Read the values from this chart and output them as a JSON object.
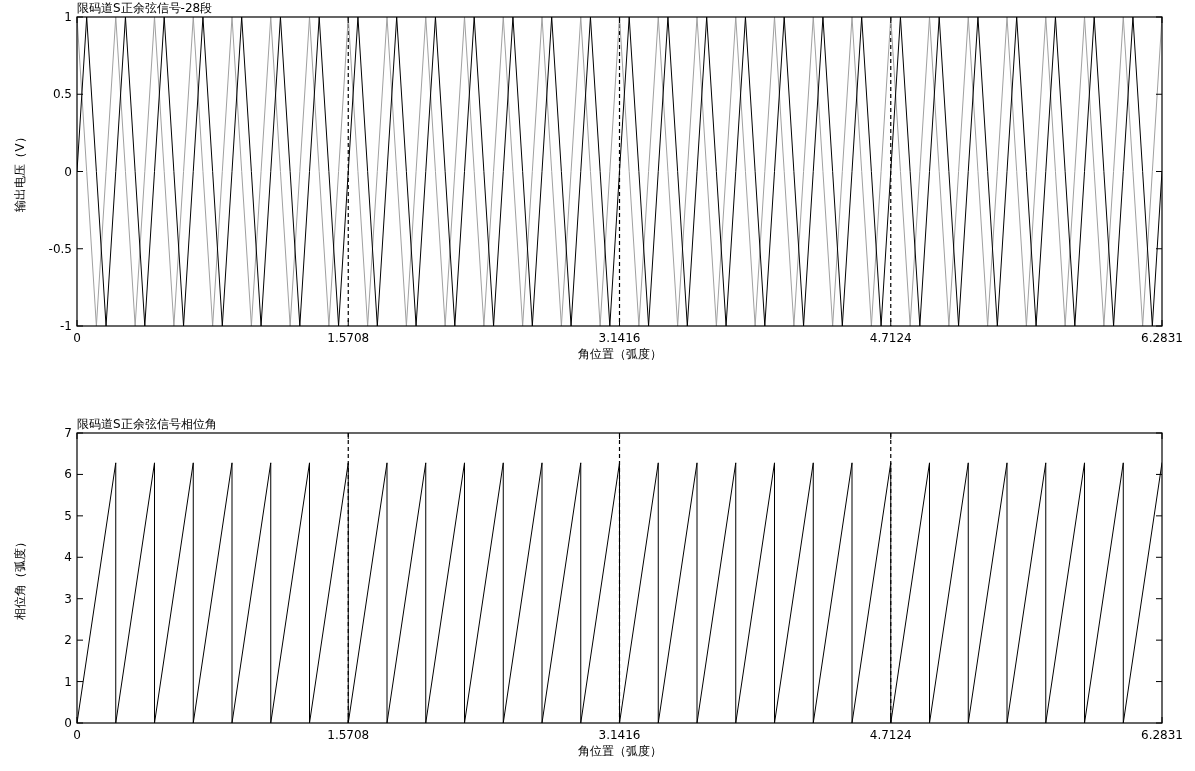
{
  "chart_data": [
    {
      "type": "line",
      "title": "限码道S正余弦信号-28段",
      "xlabel": "角位置（弧度）",
      "ylabel": "输出电压（V）",
      "x": [
        0,
        0.0561,
        0.1122,
        0.1683,
        0.2244,
        0.2805,
        0.3366,
        0.3927,
        0.4488,
        0.5049,
        0.561,
        0.6171,
        0.6732,
        0.7293,
        0.7854,
        0.8415,
        0.8976,
        0.9537,
        1.0098,
        1.0659,
        1.122,
        1.1781,
        1.2342,
        1.2903,
        1.3464,
        1.4025,
        1.4586,
        1.5147,
        1.5708,
        1.6269,
        1.683,
        1.7391,
        1.7952,
        1.8513,
        1.9074,
        1.9635,
        2.0196,
        2.0757,
        2.1318,
        2.1879,
        2.244,
        2.3001,
        2.3562,
        2.4123,
        2.4684,
        2.5245,
        2.5806,
        2.6367,
        2.6928,
        2.7489,
        2.805,
        2.8611,
        2.9172,
        2.9733,
        3.0294,
        3.0855,
        3.1416,
        3.1977,
        3.2538,
        3.3099,
        3.366,
        3.4221,
        3.4782,
        3.5343,
        3.5904,
        3.6465,
        3.7026,
        3.7587,
        3.8148,
        3.8709,
        3.927,
        3.9831,
        4.0392,
        4.0953,
        4.1514,
        4.2075,
        4.2636,
        4.3197,
        4.3758,
        4.4319,
        4.488,
        4.5441,
        4.6002,
        4.6563,
        4.7124,
        4.7685,
        4.8246,
        4.8807,
        4.9368,
        4.9929,
        5.049,
        5.1051,
        5.1612,
        5.2173,
        5.2734,
        5.3295,
        5.3856,
        5.4417,
        5.4978,
        5.5539,
        5.61,
        5.6661,
        5.7222,
        5.7783,
        5.8344,
        5.8905,
        5.9466,
        6.0027,
        6.0588,
        6.1149,
        6.171,
        6.2271,
        6.2831
      ],
      "series": [
        {
          "color": "#a0a0a0",
          "values": [
            1,
            0,
            -1,
            0,
            1,
            0,
            -1,
            0,
            1,
            0,
            -1,
            0,
            1,
            0,
            -1,
            0,
            1,
            0,
            -1,
            0,
            1,
            0,
            -1,
            0,
            1,
            0,
            -1,
            0,
            1,
            0,
            -1,
            0,
            1,
            0,
            -1,
            0,
            1,
            0,
            -1,
            0,
            1,
            0,
            -1,
            0,
            1,
            0,
            -1,
            0,
            1,
            0,
            -1,
            0,
            1,
            0,
            -1,
            0,
            1,
            0,
            -1,
            0,
            1,
            0,
            -1,
            0,
            1,
            0,
            -1,
            0,
            1,
            0,
            -1,
            0,
            1,
            0,
            -1,
            0,
            1,
            0,
            -1,
            0,
            1,
            0,
            -1,
            0,
            1,
            0,
            -1,
            0,
            1,
            0,
            -1,
            0,
            1,
            0,
            -1,
            0,
            1,
            0,
            -1,
            0,
            1,
            0,
            -1,
            0,
            1,
            0,
            -1,
            0,
            1,
            0,
            -1,
            0,
            1
          ]
        },
        {
          "color": "#000000",
          "values": [
            0,
            1,
            0,
            -1,
            0,
            1,
            0,
            -1,
            0,
            1,
            0,
            -1,
            0,
            1,
            0,
            -1,
            0,
            1,
            0,
            -1,
            0,
            1,
            0,
            -1,
            0,
            1,
            0,
            -1,
            0,
            1,
            0,
            -1,
            0,
            1,
            0,
            -1,
            0,
            1,
            0,
            -1,
            0,
            1,
            0,
            -1,
            0,
            1,
            0,
            -1,
            0,
            1,
            0,
            -1,
            0,
            1,
            0,
            -1,
            0,
            1,
            0,
            -1,
            0,
            1,
            0,
            -1,
            0,
            1,
            0,
            -1,
            0,
            1,
            0,
            -1,
            0,
            1,
            0,
            -1,
            0,
            1,
            0,
            -1,
            0,
            1,
            0,
            -1,
            0,
            1,
            0,
            -1,
            0,
            1,
            0,
            -1,
            0,
            1,
            0,
            -1,
            0,
            1,
            0,
            -1,
            0,
            1,
            0,
            -1,
            0,
            1,
            0,
            -1,
            0,
            1,
            0,
            -1,
            0
          ]
        }
      ],
      "xlim": [
        0,
        6.2831
      ],
      "ylim": [
        -1,
        1
      ],
      "xticks": [
        0,
        1.5708,
        3.1416,
        4.7124,
        6.2831
      ],
      "yticks": [
        -1,
        -0.5,
        0,
        0.5,
        1
      ],
      "ref_lines": [
        {
          "axis": "x",
          "value": 1.5708,
          "line_style": "dashed",
          "color": "#000000"
        },
        {
          "axis": "x",
          "value": 3.1416,
          "line_style": "dashed",
          "color": "#000000"
        },
        {
          "axis": "x",
          "value": 4.7124,
          "line_style": "dashed",
          "color": "#000000"
        }
      ]
    },
    {
      "type": "line",
      "title": "限码道S正余弦信号相位角",
      "xlabel": "角位置（弧度）",
      "ylabel": "相位角（弧度）",
      "x": [
        0,
        0.2244,
        0.2244,
        0.4488,
        0.4488,
        0.6732,
        0.6732,
        0.8976,
        0.8976,
        1.122,
        1.122,
        1.3464,
        1.3464,
        1.5708,
        1.5708,
        1.7952,
        1.7952,
        2.0196,
        2.0196,
        2.244,
        2.244,
        2.4684,
        2.4684,
        2.6928,
        2.6928,
        2.9172,
        2.9172,
        3.1416,
        3.1416,
        3.366,
        3.366,
        3.5904,
        3.5904,
        3.8148,
        3.8148,
        4.0392,
        4.0392,
        4.2636,
        4.2636,
        4.488,
        4.488,
        4.7124,
        4.7124,
        4.9368,
        4.9368,
        5.1612,
        5.1612,
        5.3856,
        5.3856,
        5.61,
        5.61,
        5.8344,
        5.8344,
        6.0588,
        6.0588,
        6.2831
      ],
      "series": [
        {
          "color": "#000000",
          "values": [
            0,
            6.28,
            0,
            6.28,
            0,
            6.28,
            0,
            6.28,
            0,
            6.28,
            0,
            6.28,
            0,
            6.28,
            0,
            6.28,
            0,
            6.28,
            0,
            6.28,
            0,
            6.28,
            0,
            6.28,
            0,
            6.28,
            0,
            6.28,
            0,
            6.28,
            0,
            6.28,
            0,
            6.28,
            0,
            6.28,
            0,
            6.28,
            0,
            6.28,
            0,
            6.28,
            0,
            6.28,
            0,
            6.28,
            0,
            6.28,
            0,
            6.28,
            0,
            6.28,
            0,
            6.28,
            0,
            6.28
          ]
        }
      ],
      "xlim": [
        0,
        6.2831
      ],
      "ylim": [
        0,
        7
      ],
      "xticks": [
        0,
        1.5708,
        3.1416,
        4.7124,
        6.2831
      ],
      "yticks": [
        0,
        1,
        2,
        3,
        4,
        5,
        6,
        7
      ],
      "ref_lines": [
        {
          "axis": "x",
          "value": 1.5708,
          "line_style": "dashed",
          "color": "#000000"
        },
        {
          "axis": "x",
          "value": 3.1416,
          "line_style": "dashed",
          "color": "#000000"
        },
        {
          "axis": "x",
          "value": 4.7124,
          "line_style": "dashed",
          "color": "#000000"
        }
      ]
    }
  ]
}
